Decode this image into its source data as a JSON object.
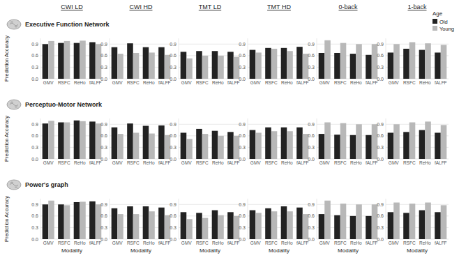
{
  "chart_data": [
    {
      "type": "bar",
      "title": "CWI LD",
      "subtitle": "Executive Function Network",
      "ylabel": "Prediction Accuracy",
      "categories": [
        "GMV",
        "RSFC",
        "ReHo",
        "fALFF"
      ],
      "series": [
        {
          "color": "#222222",
          "values": [
            0.9,
            0.93,
            0.93,
            0.95
          ]
        },
        {
          "color": "#b8b8b8",
          "values": [
            0.98,
            0.98,
            0.99,
            0.9
          ]
        }
      ],
      "ylim": [
        0,
        1.05
      ],
      "yticks": [
        {
          "value": 0,
          "label": "0.0"
        },
        0.3,
        0.6,
        0.9
      ],
      "grid": true
    },
    {
      "type": "bar",
      "title": "CWI HD",
      "categories": [
        "GMV",
        "RSFC",
        "ReHo",
        "fALFF"
      ],
      "series": [
        {
          "color": "#222222",
          "values": [
            0.82,
            0.92,
            0.82,
            0.82
          ]
        },
        {
          "color": "#b8b8b8",
          "values": [
            0.65,
            0.67,
            0.68,
            0.62
          ]
        }
      ],
      "ylim": [
        0,
        1.05
      ],
      "yticks": [
        {
          "value": 0,
          "label": "0.0"
        },
        0.3,
        0.6,
        0.9
      ],
      "grid": true
    },
    {
      "type": "bar",
      "title": "TMT LD",
      "categories": [
        "GMV",
        "RSFC",
        "ReHo",
        "fALFF"
      ],
      "series": [
        {
          "color": "#222222",
          "values": [
            0.7,
            0.72,
            0.72,
            0.7
          ]
        },
        {
          "color": "#b8b8b8",
          "values": [
            0.53,
            0.6,
            0.6,
            0.57
          ]
        }
      ],
      "ylim": [
        0,
        1.05
      ],
      "yticks": [
        {
          "value": 0,
          "label": "0.0"
        },
        0.3,
        0.6,
        0.9
      ],
      "grid": true
    },
    {
      "type": "bar",
      "title": "TMT HD",
      "categories": [
        "GMV",
        "RSFC",
        "ReHo",
        "fALFF"
      ],
      "series": [
        {
          "color": "#222222",
          "values": [
            0.75,
            0.8,
            0.8,
            0.83
          ]
        },
        {
          "color": "#b8b8b8",
          "values": [
            0.68,
            0.78,
            0.72,
            0.65
          ]
        }
      ],
      "ylim": [
        0,
        1.05
      ],
      "yticks": [
        {
          "value": 0,
          "label": "0.0"
        },
        0.3,
        0.6,
        0.9
      ],
      "grid": true
    },
    {
      "type": "bar",
      "title": "0-back",
      "categories": [
        "GMV",
        "RSFC",
        "ReHo",
        "fALFF"
      ],
      "series": [
        {
          "color": "#222222",
          "values": [
            0.67,
            0.67,
            0.65,
            0.62
          ]
        },
        {
          "color": "#b8b8b8",
          "values": [
            1.0,
            0.93,
            0.9,
            0.9
          ]
        }
      ],
      "ylim": [
        0,
        1.05
      ],
      "yticks": [
        {
          "value": 0,
          "label": "0.0"
        },
        0.3,
        0.6,
        0.9
      ],
      "grid": true
    },
    {
      "type": "bar",
      "title": "1-back",
      "legend_title": "Age",
      "legend": "right",
      "categories": [
        "GMV",
        "RSFC",
        "ReHo",
        "fALFF"
      ],
      "series": [
        {
          "name": "Old",
          "color": "#222222",
          "values": [
            0.68,
            0.78,
            0.75,
            0.68
          ]
        },
        {
          "name": "Young",
          "color": "#b8b8b8",
          "values": [
            0.9,
            0.95,
            0.92,
            0.88
          ]
        }
      ],
      "ylim": [
        0,
        1.05
      ],
      "yticks": [
        {
          "value": 0,
          "label": "0.0"
        },
        0.3,
        0.6,
        0.9
      ],
      "grid": true
    },
    {
      "type": "bar",
      "subtitle": "Perceptuo-Motor Network",
      "ylabel": "Prediction Accuracy",
      "categories": [
        "GMV",
        "RSFC",
        "ReHo",
        "fALFF"
      ],
      "series": [
        {
          "color": "#222222",
          "values": [
            0.92,
            0.95,
            1.0,
            0.97
          ]
        },
        {
          "color": "#b8b8b8",
          "values": [
            0.99,
            0.95,
            0.98,
            0.92
          ]
        }
      ],
      "ylim": [
        0,
        1.05
      ],
      "yticks": [
        {
          "value": 0,
          "label": "0.0"
        },
        0.3,
        0.6,
        0.9
      ],
      "grid": true
    },
    {
      "type": "bar",
      "categories": [
        "GMV",
        "RSFC",
        "ReHo",
        "fALFF"
      ],
      "series": [
        {
          "color": "#222222",
          "values": [
            0.82,
            0.92,
            0.86,
            0.87
          ]
        },
        {
          "color": "#b8b8b8",
          "values": [
            0.65,
            0.68,
            0.66,
            0.62
          ]
        }
      ],
      "ylim": [
        0,
        1.05
      ],
      "yticks": [
        {
          "value": 0,
          "label": "0.0"
        },
        0.3,
        0.6,
        0.9
      ],
      "grid": true
    },
    {
      "type": "bar",
      "categories": [
        "GMV",
        "RSFC",
        "ReHo",
        "fALFF"
      ],
      "series": [
        {
          "color": "#222222",
          "values": [
            0.68,
            0.78,
            0.73,
            0.7
          ]
        },
        {
          "color": "#b8b8b8",
          "values": [
            0.52,
            0.65,
            0.6,
            0.6
          ]
        }
      ],
      "ylim": [
        0,
        1.05
      ],
      "yticks": [
        {
          "value": 0,
          "label": "0.0"
        },
        0.3,
        0.6,
        0.9
      ],
      "grid": true
    },
    {
      "type": "bar",
      "categories": [
        "GMV",
        "RSFC",
        "ReHo",
        "fALFF"
      ],
      "series": [
        {
          "color": "#222222",
          "values": [
            0.75,
            0.82,
            0.82,
            0.82
          ]
        },
        {
          "color": "#b8b8b8",
          "values": [
            0.68,
            0.72,
            0.72,
            0.65
          ]
        }
      ],
      "ylim": [
        0,
        1.05
      ],
      "yticks": [
        {
          "value": 0,
          "label": "0.0"
        },
        0.3,
        0.6,
        0.9
      ],
      "grid": true
    },
    {
      "type": "bar",
      "categories": [
        "GMV",
        "RSFC",
        "ReHo",
        "fALFF"
      ],
      "series": [
        {
          "color": "#222222",
          "values": [
            0.65,
            0.63,
            0.62,
            0.62
          ]
        },
        {
          "color": "#b8b8b8",
          "values": [
            0.95,
            0.93,
            0.9,
            0.9
          ]
        }
      ],
      "ylim": [
        0,
        1.05
      ],
      "yticks": [
        {
          "value": 0,
          "label": "0.0"
        },
        0.3,
        0.6,
        0.9
      ],
      "grid": true
    },
    {
      "type": "bar",
      "categories": [
        "GMV",
        "RSFC",
        "ReHo",
        "fALFF"
      ],
      "series": [
        {
          "color": "#222222",
          "values": [
            0.68,
            0.7,
            0.75,
            0.68
          ]
        },
        {
          "color": "#b8b8b8",
          "values": [
            0.9,
            0.95,
            0.97,
            0.88
          ]
        }
      ],
      "ylim": [
        0,
        1.05
      ],
      "yticks": [
        {
          "value": 0,
          "label": "0.0"
        },
        0.3,
        0.6,
        0.9
      ],
      "grid": true
    },
    {
      "type": "bar",
      "subtitle": "Power's graph",
      "ylabel": "Prediction Accuracy",
      "xlabel": "Modality",
      "categories": [
        "GMV",
        "RSFC",
        "ReHo",
        "fALFF"
      ],
      "series": [
        {
          "color": "#222222",
          "values": [
            0.9,
            0.9,
            0.96,
            0.98
          ]
        },
        {
          "color": "#b8b8b8",
          "values": [
            1.0,
            0.88,
            0.97,
            0.9
          ]
        }
      ],
      "ylim": [
        0,
        1.05
      ],
      "yticks": [
        {
          "value": 0,
          "label": "0.0"
        },
        0.3,
        0.6,
        0.9
      ],
      "grid": true
    },
    {
      "type": "bar",
      "xlabel": "Modality",
      "categories": [
        "GMV",
        "RSFC",
        "ReHo",
        "fALFF"
      ],
      "series": [
        {
          "color": "#222222",
          "values": [
            0.8,
            0.85,
            0.85,
            0.82
          ]
        },
        {
          "color": "#b8b8b8",
          "values": [
            0.65,
            0.65,
            0.72,
            0.62
          ]
        }
      ],
      "ylim": [
        0,
        1.05
      ],
      "yticks": [
        {
          "value": 0,
          "label": "0.0"
        },
        0.3,
        0.6,
        0.9
      ],
      "grid": true
    },
    {
      "type": "bar",
      "xlabel": "Modality",
      "categories": [
        "GMV",
        "RSFC",
        "ReHo",
        "fALFF"
      ],
      "series": [
        {
          "color": "#222222",
          "values": [
            0.7,
            0.68,
            0.75,
            0.7
          ]
        },
        {
          "color": "#b8b8b8",
          "values": [
            0.52,
            0.55,
            0.62,
            0.6
          ]
        }
      ],
      "ylim": [
        0,
        1.05
      ],
      "yticks": [
        {
          "value": 0,
          "label": "0.0"
        },
        0.3,
        0.6,
        0.9
      ],
      "grid": true
    },
    {
      "type": "bar",
      "xlabel": "Modality",
      "categories": [
        "GMV",
        "RSFC",
        "ReHo",
        "fALFF"
      ],
      "series": [
        {
          "color": "#222222",
          "values": [
            0.75,
            0.8,
            0.85,
            0.82
          ]
        },
        {
          "color": "#b8b8b8",
          "values": [
            0.68,
            0.72,
            0.72,
            0.65
          ]
        }
      ],
      "ylim": [
        0,
        1.05
      ],
      "yticks": [
        {
          "value": 0,
          "label": "0.0"
        },
        0.3,
        0.6,
        0.9
      ],
      "grid": true
    },
    {
      "type": "bar",
      "xlabel": "Modality",
      "categories": [
        "GMV",
        "RSFC",
        "ReHo",
        "fALFF"
      ],
      "series": [
        {
          "color": "#222222",
          "values": [
            0.65,
            0.62,
            0.6,
            0.6
          ]
        },
        {
          "color": "#b8b8b8",
          "values": [
            1.0,
            0.92,
            0.9,
            0.9
          ]
        }
      ],
      "ylim": [
        0,
        1.05
      ],
      "yticks": [
        {
          "value": 0,
          "label": "0.0"
        },
        0.3,
        0.6,
        0.9
      ],
      "grid": true
    },
    {
      "type": "bar",
      "xlabel": "Modality",
      "categories": [
        "GMV",
        "RSFC",
        "ReHo",
        "fALFF"
      ],
      "series": [
        {
          "color": "#222222",
          "values": [
            0.7,
            0.68,
            0.75,
            0.7
          ]
        },
        {
          "color": "#b8b8b8",
          "values": [
            0.95,
            0.92,
            0.95,
            0.88
          ]
        }
      ],
      "ylim": [
        0,
        1.05
      ],
      "yticks": [
        {
          "value": 0,
          "label": "0.0"
        },
        0.3,
        0.6,
        0.9
      ],
      "grid": true
    }
  ]
}
